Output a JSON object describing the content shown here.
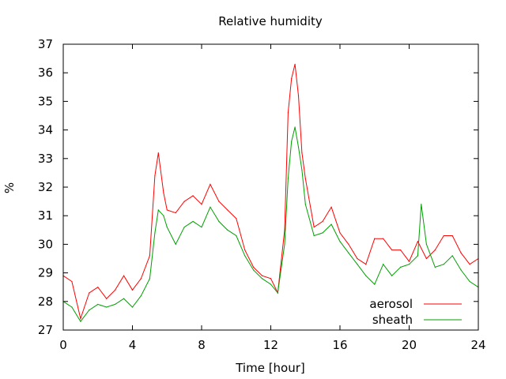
{
  "chart_data": {
    "type": "line",
    "title": "Relative humidity",
    "xlabel": "Time [hour]",
    "ylabel": "%",
    "xlim": [
      0,
      24
    ],
    "ylim": [
      27,
      37
    ],
    "xticks": [
      0,
      4,
      8,
      12,
      16,
      20,
      24
    ],
    "yticks": [
      27,
      28,
      29,
      30,
      31,
      32,
      33,
      34,
      35,
      36,
      37
    ],
    "grid": false,
    "legend_position": "bottom-right",
    "series": [
      {
        "name": "aerosol",
        "color": "#ff0000",
        "x": [
          0,
          0.5,
          1,
          1.5,
          2,
          2.5,
          3,
          3.5,
          4,
          4.5,
          5,
          5.3,
          5.5,
          5.8,
          6,
          6.5,
          7,
          7.5,
          8,
          8.5,
          9,
          9.5,
          10,
          10.5,
          11,
          11.5,
          12,
          12.4,
          12.8,
          13,
          13.2,
          13.4,
          13.6,
          13.8,
          14,
          14.5,
          15,
          15.5,
          16,
          16.5,
          17,
          17.5,
          18,
          18.5,
          19,
          19.5,
          20,
          20.5,
          21,
          21.5,
          22,
          22.5,
          23,
          23.5,
          24
        ],
        "values": [
          28.9,
          28.7,
          27.4,
          28.3,
          28.5,
          28.1,
          28.4,
          28.9,
          28.4,
          28.8,
          29.6,
          32.4,
          33.2,
          31.8,
          31.2,
          31.1,
          31.5,
          31.7,
          31.4,
          32.1,
          31.5,
          31.2,
          30.9,
          29.8,
          29.2,
          28.9,
          28.8,
          28.3,
          30.5,
          34.6,
          35.8,
          36.3,
          35.2,
          33.2,
          32.3,
          30.6,
          30.8,
          31.3,
          30.4,
          30.0,
          29.5,
          29.3,
          30.2,
          30.2,
          29.8,
          29.8,
          29.4,
          30.1,
          29.5,
          29.8,
          30.3,
          30.3,
          29.7,
          29.3,
          29.5
        ]
      },
      {
        "name": "sheath",
        "color": "#00a000",
        "x": [
          0,
          0.5,
          1,
          1.5,
          2,
          2.5,
          3,
          3.5,
          4,
          4.5,
          5,
          5.3,
          5.5,
          5.8,
          6,
          6.5,
          7,
          7.5,
          8,
          8.5,
          9,
          9.5,
          10,
          10.5,
          11,
          11.5,
          12,
          12.4,
          12.8,
          13,
          13.2,
          13.4,
          13.6,
          13.8,
          14,
          14.5,
          15,
          15.5,
          16,
          16.5,
          17,
          17.5,
          18,
          18.5,
          19,
          19.5,
          20,
          20.5,
          20.7,
          21,
          21.5,
          22,
          22.5,
          23,
          23.5,
          24
        ],
        "values": [
          28.0,
          27.8,
          27.3,
          27.7,
          27.9,
          27.8,
          27.9,
          28.1,
          27.8,
          28.2,
          28.8,
          30.4,
          31.2,
          31.0,
          30.6,
          30.0,
          30.6,
          30.8,
          30.6,
          31.3,
          30.8,
          30.5,
          30.3,
          29.6,
          29.1,
          28.8,
          28.6,
          28.3,
          30.0,
          32.3,
          33.6,
          34.1,
          33.4,
          32.6,
          31.4,
          30.3,
          30.4,
          30.7,
          30.1,
          29.7,
          29.3,
          28.9,
          28.6,
          29.3,
          28.9,
          29.2,
          29.3,
          29.6,
          31.4,
          30.0,
          29.2,
          29.3,
          29.6,
          29.1,
          28.7,
          28.5
        ]
      }
    ]
  }
}
